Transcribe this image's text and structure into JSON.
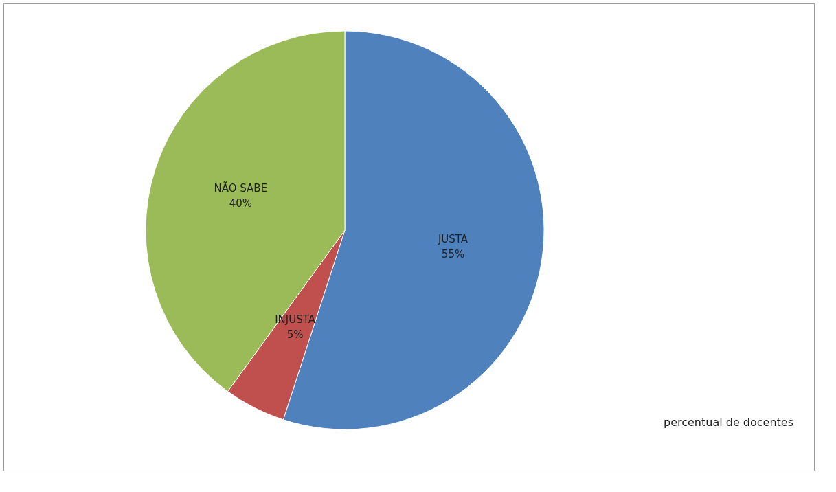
{
  "chart_data": {
    "type": "pie",
    "categories": [
      "JUSTA",
      "INJUSTA",
      "NÃO SABE"
    ],
    "values": [
      55,
      5,
      40
    ],
    "colors": [
      "#4f81bd",
      "#c0504d",
      "#9bbb59"
    ],
    "value_labels": [
      "55%",
      "5%",
      "40%"
    ],
    "legend": false,
    "annotations": [
      "percentual de docentes"
    ]
  }
}
